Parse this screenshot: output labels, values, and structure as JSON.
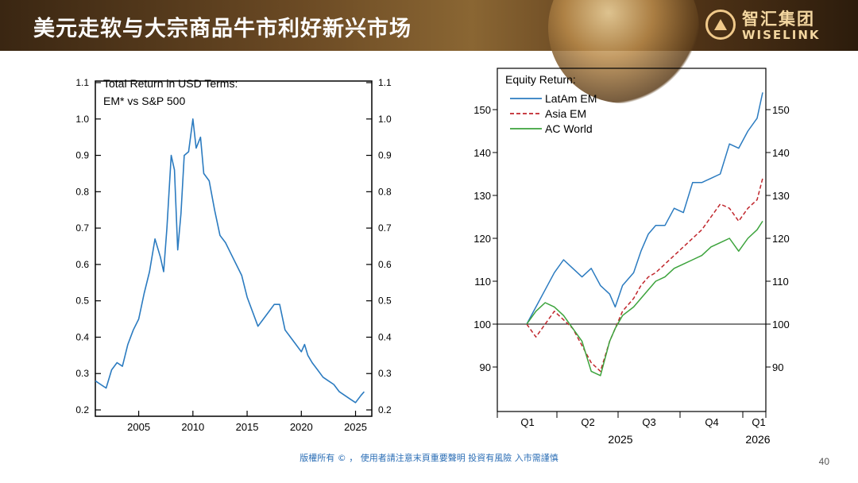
{
  "header": {
    "title": "美元走软与大宗商品牛市利好新兴市场",
    "logo_cn": "智汇集团",
    "logo_en": "WISELINK"
  },
  "footer": {
    "disclaimer": "版權所有 © ， 使用者請注意末頁重要聲明 投資有風險 入市需謹慎",
    "page_number": "40"
  },
  "chart_data": [
    {
      "type": "line",
      "title": "Total Return in USD Terms:",
      "subtitle": "EM* vs S&P 500",
      "xlim": [
        2001,
        2026.5
      ],
      "ylim": [
        0.2,
        1.1
      ],
      "xticks": [
        2005,
        2010,
        2015,
        2020,
        2025
      ],
      "yticks": [
        0.2,
        0.3,
        0.4,
        0.5,
        0.6,
        0.7,
        0.8,
        0.9,
        1.0,
        1.1
      ],
      "ytick_labels": [
        "0.2",
        "0.3",
        "0.4",
        "0.5",
        "0.6",
        "0.7",
        "0.8",
        "0.9",
        "1.0",
        "1.1"
      ],
      "grid": false,
      "series": [
        {
          "color": "#2b7bc0",
          "x": [
            2001.0,
            2001.5,
            2002.0,
            2002.5,
            2003.0,
            2003.5,
            2004.0,
            2004.5,
            2005.0,
            2005.5,
            2006.0,
            2006.5,
            2007.0,
            2007.3,
            2007.6,
            2008.0,
            2008.3,
            2008.6,
            2008.9,
            2009.2,
            2009.6,
            2010.0,
            2010.3,
            2010.7,
            2011.0,
            2011.5,
            2012.0,
            2012.5,
            2013.0,
            2013.5,
            2014.0,
            2014.5,
            2015.0,
            2015.5,
            2016.0,
            2016.5,
            2017.0,
            2017.5,
            2018.0,
            2018.5,
            2019.0,
            2019.5,
            2020.0,
            2020.3,
            2020.6,
            2021.0,
            2021.5,
            2022.0,
            2022.5,
            2023.0,
            2023.5,
            2024.0,
            2024.5,
            2025.0,
            2025.5,
            2025.8
          ],
          "y": [
            0.28,
            0.27,
            0.26,
            0.31,
            0.33,
            0.32,
            0.38,
            0.42,
            0.45,
            0.52,
            0.58,
            0.67,
            0.62,
            0.58,
            0.7,
            0.9,
            0.86,
            0.64,
            0.74,
            0.9,
            0.91,
            1.0,
            0.92,
            0.95,
            0.85,
            0.83,
            0.75,
            0.68,
            0.66,
            0.63,
            0.6,
            0.57,
            0.51,
            0.47,
            0.43,
            0.45,
            0.47,
            0.49,
            0.49,
            0.42,
            0.4,
            0.38,
            0.36,
            0.38,
            0.35,
            0.33,
            0.31,
            0.29,
            0.28,
            0.27,
            0.25,
            0.24,
            0.23,
            0.22,
            0.24,
            0.25
          ]
        }
      ]
    },
    {
      "type": "line",
      "title": "Equity Return:",
      "legend": "top-left",
      "ylim": [
        80,
        157
      ],
      "yticks": [
        90,
        100,
        110,
        120,
        130,
        140,
        150
      ],
      "ytick_labels": [
        "90",
        "100",
        "110",
        "120",
        "130",
        "140",
        "150"
      ],
      "xticks": [
        "Q1",
        "Q2",
        "Q3",
        "Q4",
        "Q1"
      ],
      "year_labels": [
        "2025",
        "2026"
      ],
      "reference_line": 100,
      "grid": false,
      "series": [
        {
          "name": "LatAm EM",
          "color": "#2b7bc0",
          "dash": "solid",
          "x": [
            0.0,
            0.05,
            0.1,
            0.15,
            0.2,
            0.25,
            0.3,
            0.35,
            0.4,
            0.45,
            0.48,
            0.52,
            0.58,
            0.62,
            0.66,
            0.7,
            0.75,
            0.8,
            0.85,
            0.9,
            0.95,
            1.0,
            1.05,
            1.1,
            1.15,
            1.2,
            1.25,
            1.28
          ],
          "y": [
            100,
            104,
            108,
            112,
            115,
            113,
            111,
            113,
            109,
            107,
            104,
            109,
            112,
            117,
            121,
            123,
            123,
            127,
            126,
            133,
            133,
            134,
            135,
            142,
            141,
            145,
            148,
            154
          ]
        },
        {
          "name": "Asia EM",
          "color": "#c0262c",
          "dash": "5,3",
          "x": [
            0.0,
            0.05,
            0.1,
            0.15,
            0.2,
            0.25,
            0.3,
            0.35,
            0.4,
            0.45,
            0.48,
            0.52,
            0.58,
            0.62,
            0.66,
            0.7,
            0.75,
            0.8,
            0.85,
            0.9,
            0.95,
            1.0,
            1.05,
            1.1,
            1.15,
            1.2,
            1.25,
            1.28
          ],
          "y": [
            100,
            97,
            100,
            103,
            101,
            99,
            95,
            91,
            89,
            96,
            99,
            103,
            106,
            109,
            111,
            112,
            114,
            116,
            118,
            120,
            122,
            125,
            128,
            127,
            124,
            127,
            129,
            134
          ]
        },
        {
          "name": "AC World",
          "color": "#3ca33c",
          "dash": "solid",
          "x": [
            0.0,
            0.05,
            0.1,
            0.15,
            0.2,
            0.25,
            0.3,
            0.35,
            0.4,
            0.45,
            0.48,
            0.52,
            0.58,
            0.62,
            0.66,
            0.7,
            0.75,
            0.8,
            0.85,
            0.9,
            0.95,
            1.0,
            1.05,
            1.1,
            1.15,
            1.2,
            1.25,
            1.28
          ],
          "y": [
            100,
            103,
            105,
            104,
            102,
            99,
            96,
            89,
            88,
            96,
            99,
            102,
            104,
            106,
            108,
            110,
            111,
            113,
            114,
            115,
            116,
            118,
            119,
            120,
            117,
            120,
            122,
            124
          ]
        }
      ]
    }
  ]
}
